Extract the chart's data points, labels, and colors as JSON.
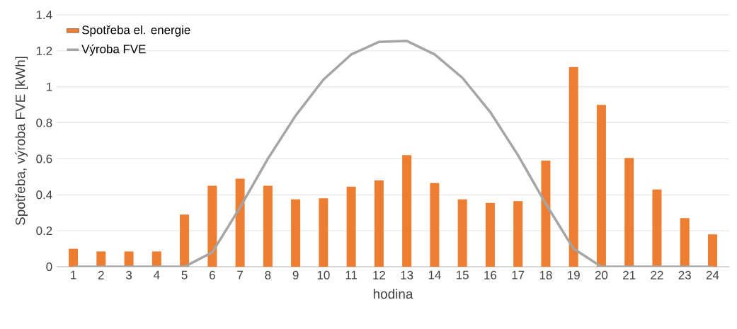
{
  "chart_data": {
    "type": "bar",
    "xlabel": "hodina",
    "ylabel": "Spotřeba, výroba FVE [kWh]",
    "categories": [
      "1",
      "2",
      "3",
      "4",
      "5",
      "6",
      "7",
      "8",
      "9",
      "10",
      "11",
      "12",
      "13",
      "14",
      "15",
      "16",
      "17",
      "18",
      "19",
      "20",
      "21",
      "22",
      "23",
      "24"
    ],
    "series": [
      {
        "name": "Spotřeba el. energie",
        "color": "#ed7d31",
        "values": [
          0.1,
          0.085,
          0.085,
          0.085,
          0.29,
          0.45,
          0.49,
          0.45,
          0.375,
          0.38,
          0.445,
          0.48,
          0.62,
          0.465,
          0.375,
          0.355,
          0.365,
          0.59,
          1.11,
          0.9,
          0.605,
          0.43,
          0.27,
          0.18
        ]
      },
      {
        "name": "Výroba FVE",
        "type": "line",
        "color": "#a5a5a5",
        "values": [
          0,
          0,
          0,
          0,
          0,
          0.08,
          0.33,
          0.6,
          0.84,
          1.04,
          1.18,
          1.25,
          1.255,
          1.18,
          1.05,
          0.86,
          0.62,
          0.35,
          0.1,
          0,
          0,
          0,
          0,
          0
        ]
      }
    ],
    "ylim": [
      0,
      1.4
    ],
    "yticks": [
      0,
      0.2,
      0.4,
      0.6,
      0.8,
      1,
      1.2,
      1.4
    ],
    "grid": "y",
    "legend": "top left"
  }
}
